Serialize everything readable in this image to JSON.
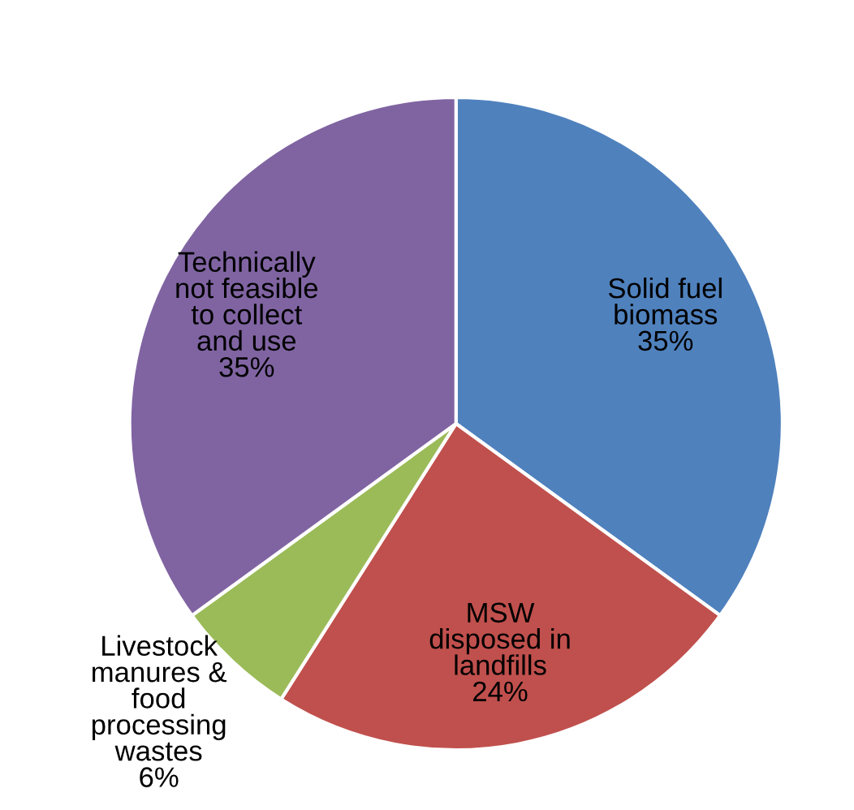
{
  "chart_data": {
    "type": "pie",
    "categories": [
      "Solid fuel\nbiomass",
      "MSW\ndisposed in\nlandfills",
      "Livestock\nmanures &\nfood\nprocessing\nwastes",
      "Technically\nnot feasible\nto collect\nand use"
    ],
    "values": [
      35,
      24,
      6,
      35
    ],
    "colors": [
      "#4f81bd",
      "#c0504d",
      "#9bbb59",
      "#8064a2"
    ],
    "value_labels": [
      "35%",
      "24%",
      "6%",
      "35%"
    ]
  }
}
